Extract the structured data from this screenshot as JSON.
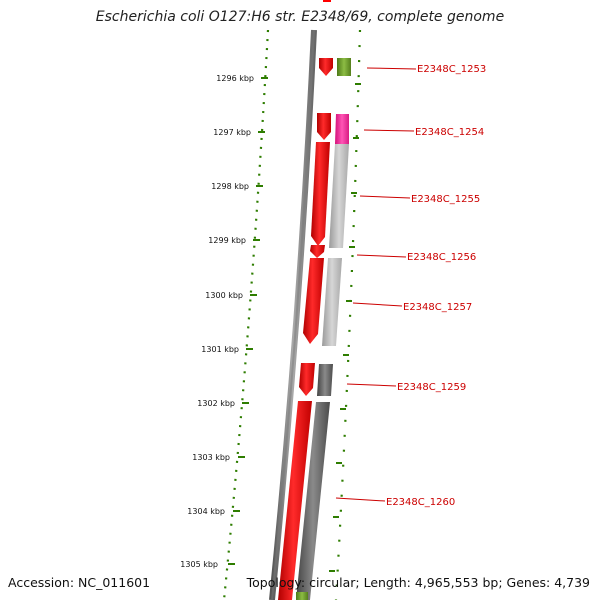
{
  "title": "Escherichia coli O127:H6 str. E2348/69, complete genome",
  "accession": "Accession: NC_011601",
  "topology": "Topology: circular; Length: 4,965,553 bp; Genes: 4,739",
  "colors": {
    "forward_cds": "#ff0000",
    "backbone": "#888888",
    "ruler": "#2e7d00",
    "label": "#cc0000",
    "cog_green": "#6b9a2a",
    "cog_pink": "#ff2a9c",
    "cog_lightgray": "#bdbdbd",
    "cog_darkgray": "#6a6a6a"
  },
  "ruler": {
    "ticks": [
      "1296 kbp",
      "1297 kbp",
      "1298 kbp",
      "1299 kbp",
      "1300 kbp",
      "1301 kbp",
      "1302 kbp",
      "1303 kbp",
      "1304 kbp",
      "1305 kbp"
    ]
  },
  "gene_labels": [
    "E2348C_1253",
    "E2348C_1254",
    "E2348C_1255",
    "E2348C_1256",
    "E2348C_1257",
    "E2348C_1259",
    "E2348C_1260"
  ]
}
